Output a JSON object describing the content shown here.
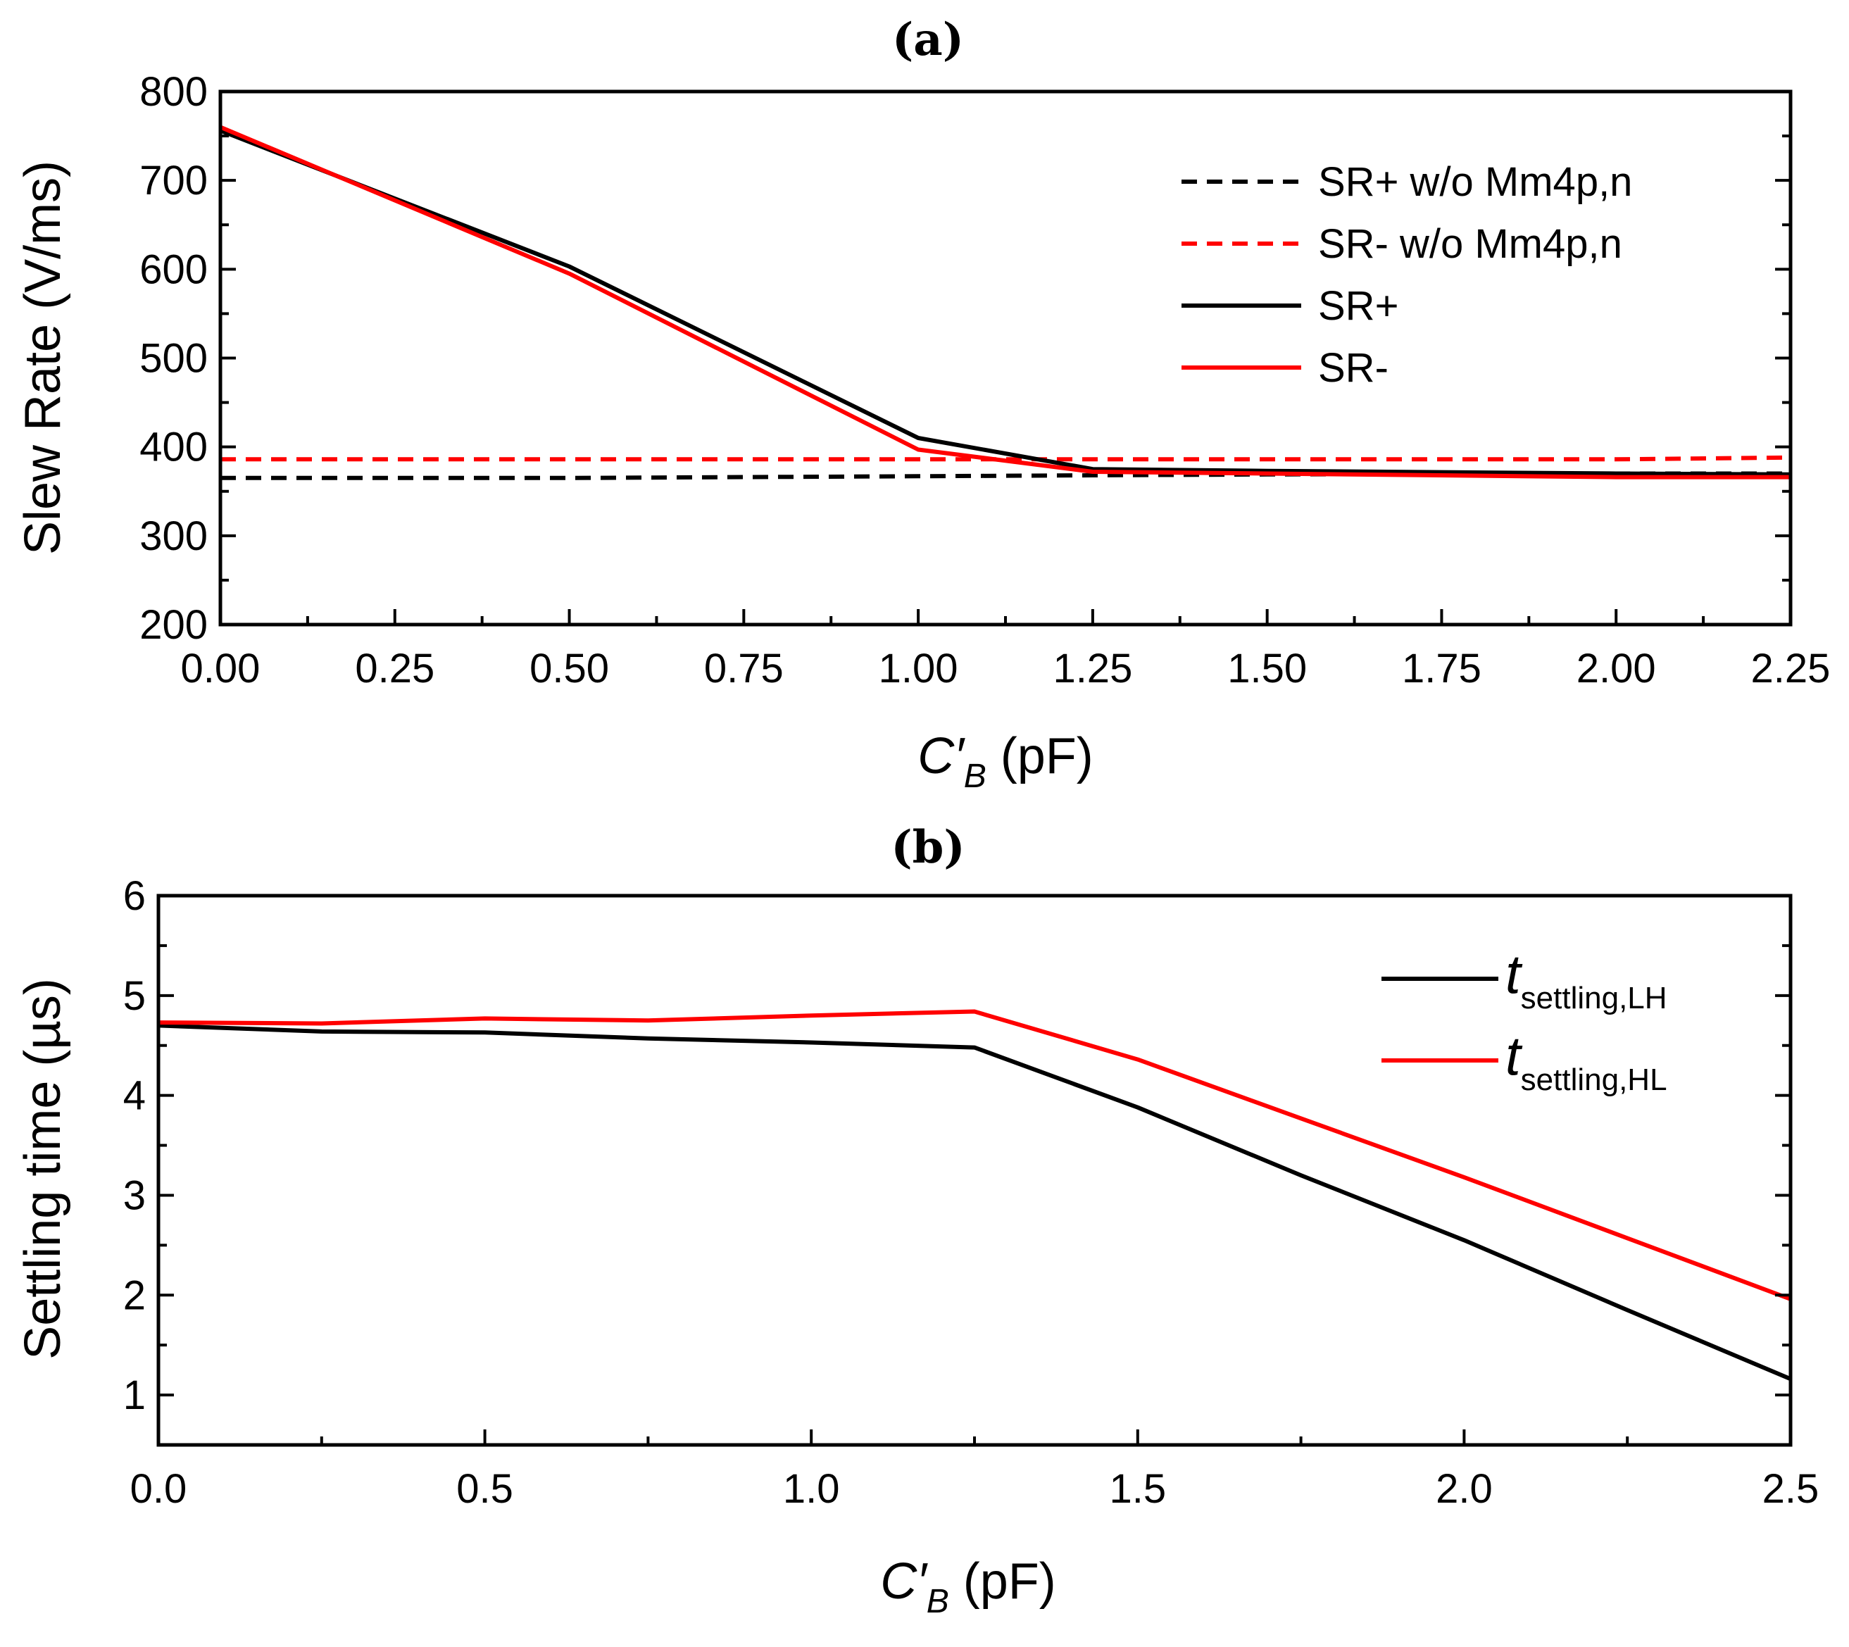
{
  "chart_data": [
    {
      "panel_label": "(a)",
      "type": "line",
      "xlabel": "C′B (pF)",
      "xlabel_parts": {
        "variable": "C′",
        "subscript": "B",
        "unit": " (pF)"
      },
      "ylabel": "Slew Rate (V/ms)",
      "xlim": [
        0,
        2.25
      ],
      "ylim": [
        200,
        800
      ],
      "xticks": [
        "0.00",
        "0.25",
        "0.50",
        "0.75",
        "1.00",
        "1.25",
        "1.50",
        "1.75",
        "2.00",
        "2.25"
      ],
      "yticks": [
        "200",
        "300",
        "400",
        "500",
        "600",
        "700",
        "800"
      ],
      "legend_position": "top-right",
      "series": [
        {
          "name": "SR+ w/o Mm4p,n",
          "color": "#000000",
          "dash": true,
          "x": [
            0,
            0.5,
            1.0,
            1.25,
            1.5,
            2.0,
            2.25
          ],
          "values": [
            365,
            365,
            367,
            368,
            369,
            370,
            370
          ]
        },
        {
          "name": "SR- w/o Mm4p,n",
          "color": "#ff0000",
          "dash": true,
          "x": [
            0,
            0.5,
            1.0,
            1.25,
            1.5,
            2.0,
            2.25
          ],
          "values": [
            386,
            386,
            386,
            386,
            386,
            386,
            388
          ]
        },
        {
          "name": "SR+",
          "color": "#000000",
          "dash": false,
          "x": [
            0,
            0.5,
            1.0,
            1.25,
            1.5,
            2.0,
            2.25
          ],
          "values": [
            756,
            603,
            410,
            375,
            373,
            370,
            369
          ]
        },
        {
          "name": "SR-",
          "color": "#ff0000",
          "dash": false,
          "x": [
            0,
            0.5,
            1.0,
            1.25,
            1.5,
            2.0,
            2.25
          ],
          "values": [
            760,
            595,
            397,
            372,
            370,
            366,
            366
          ]
        }
      ]
    },
    {
      "panel_label": "(b)",
      "type": "line",
      "xlabel": "C′B (pF)",
      "xlabel_parts": {
        "variable": "C′",
        "subscript": "B",
        "unit": " (pF)"
      },
      "ylabel": "Settling time (µs)",
      "xlim": [
        0,
        2.5
      ],
      "ylim": [
        0.5,
        6
      ],
      "xticks": [
        "0.0",
        "0.5",
        "1.0",
        "1.5",
        "2.0",
        "2.5"
      ],
      "yticks": [
        "1",
        "2",
        "3",
        "4",
        "5",
        "6"
      ],
      "legend_position": "top-right",
      "series": [
        {
          "name": "tsettling,LH",
          "main": "t",
          "sub": "settling,LH",
          "color": "#000000",
          "dash": false,
          "x": [
            0,
            0.25,
            0.5,
            0.75,
            1.0,
            1.25,
            1.5,
            1.75,
            2.0,
            2.25,
            2.5
          ],
          "values": [
            4.7,
            4.64,
            4.63,
            4.57,
            4.53,
            4.48,
            3.88,
            3.2,
            2.55,
            1.85,
            1.16
          ]
        },
        {
          "name": "tsettling,HL",
          "main": "t",
          "sub": "settling,HL",
          "color": "#ff0000",
          "dash": false,
          "x": [
            0,
            0.25,
            0.5,
            0.75,
            1.0,
            1.25,
            1.5,
            1.75,
            2.0,
            2.25,
            2.5
          ],
          "values": [
            4.73,
            4.72,
            4.77,
            4.75,
            4.8,
            4.84,
            4.36,
            3.77,
            3.18,
            2.57,
            1.96
          ]
        }
      ]
    }
  ]
}
